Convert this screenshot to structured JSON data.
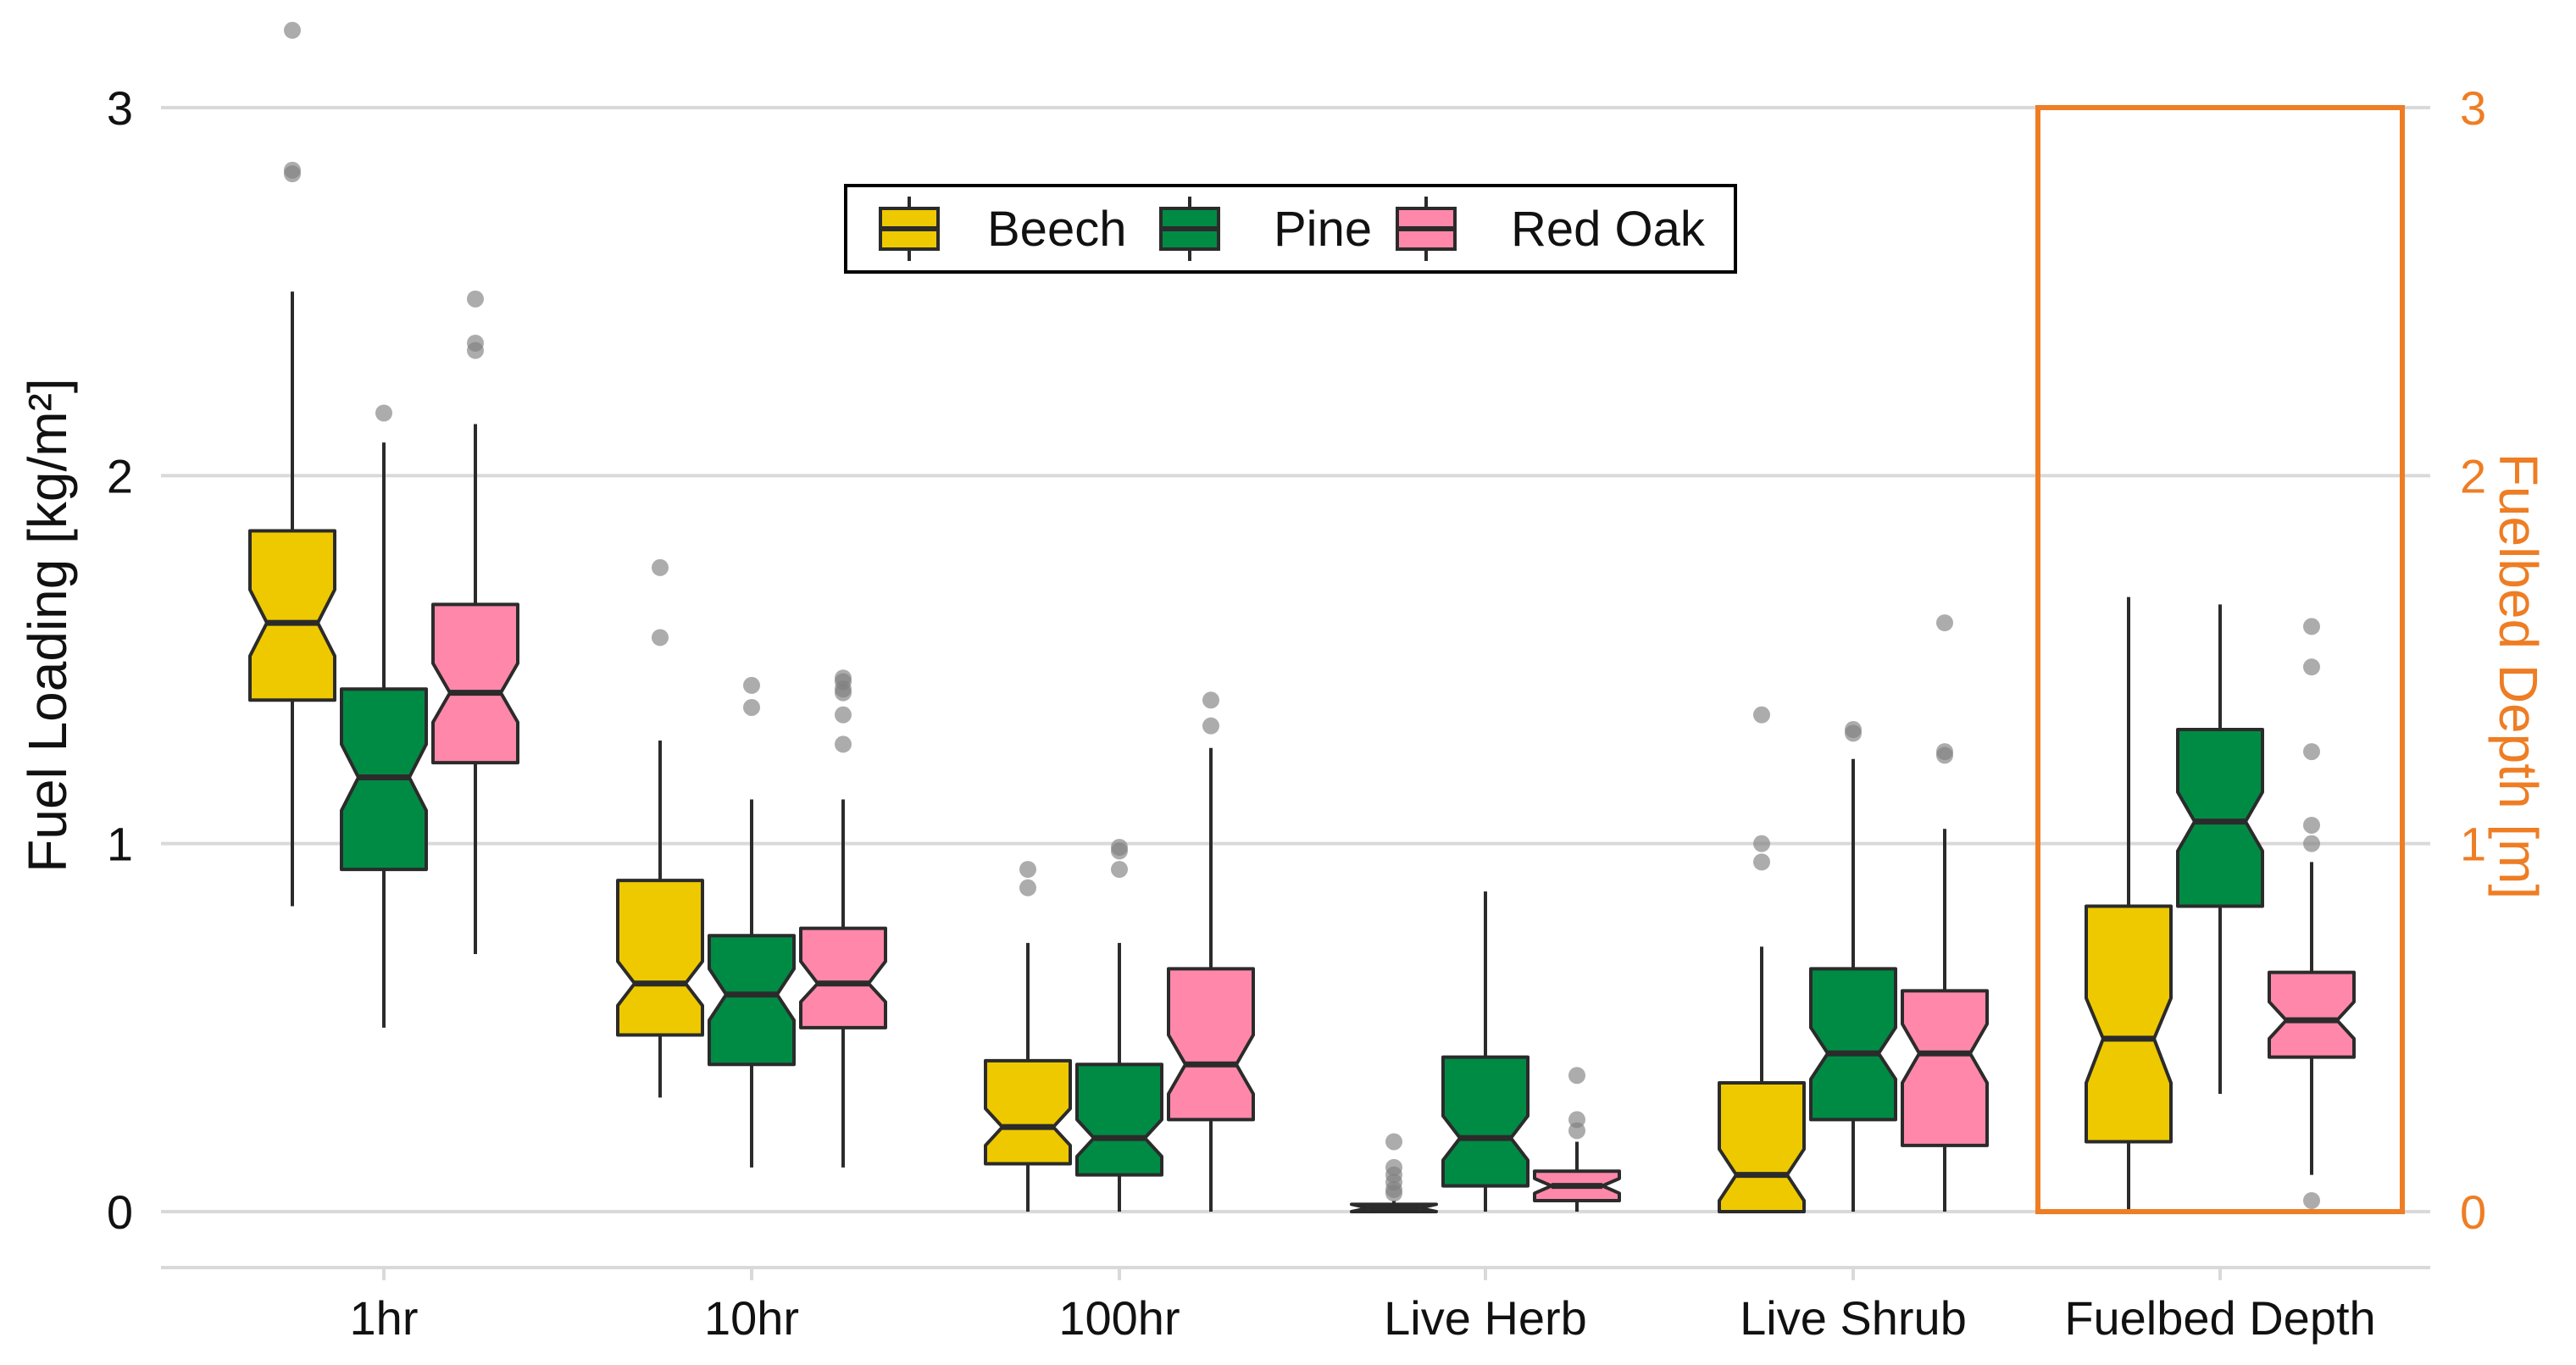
{
  "chart_data": {
    "type": "boxplot",
    "title": "",
    "xlabel": "",
    "ylabel": "Fuel Loading [kg/m²]",
    "ylabel_right": "Fuelbed Depth [m]",
    "ylim": [
      0,
      3
    ],
    "y_ticks": [
      "0",
      "1",
      "2",
      "3"
    ],
    "y_ticks_right": [
      "0",
      "1",
      "2",
      "3"
    ],
    "categories": [
      "1hr",
      "10hr",
      "100hr",
      "Live Herb",
      "Live Shrub",
      "Fuelbed Depth"
    ],
    "highlighted_category": "Fuelbed Depth",
    "legend_position": "top-center",
    "grid": true,
    "series": [
      {
        "name": "Beech",
        "color": "#EEC900",
        "boxes": [
          {
            "whisker_low": 0.83,
            "q1": 1.39,
            "median": 1.6,
            "q3": 1.85,
            "whisker_high": 2.5,
            "notch": [
              1.51,
              1.69
            ],
            "outliers": [
              2.82,
              2.83,
              3.21
            ]
          },
          {
            "whisker_low": 0.31,
            "q1": 0.48,
            "median": 0.62,
            "q3": 0.9,
            "whisker_high": 1.28,
            "notch": [
              0.56,
              0.68
            ],
            "outliers": [
              1.56,
              1.75
            ]
          },
          {
            "whisker_low": 0.0,
            "q1": 0.13,
            "median": 0.23,
            "q3": 0.41,
            "whisker_high": 0.73,
            "notch": [
              0.18,
              0.28
            ],
            "outliers": [
              0.88,
              0.93
            ]
          },
          {
            "whisker_low": 0.0,
            "q1": 0.0,
            "median": 0.01,
            "q3": 0.02,
            "whisker_high": 0.03,
            "notch": [
              0.0,
              0.02
            ],
            "outliers": [
              0.05,
              0.06,
              0.08,
              0.1,
              0.12,
              0.19
            ]
          },
          {
            "whisker_low": 0.0,
            "q1": 0.0,
            "median": 0.1,
            "q3": 0.35,
            "whisker_high": 0.72,
            "notch": [
              0.03,
              0.17
            ],
            "outliers": [
              0.95,
              1.0,
              1.35
            ]
          },
          {
            "whisker_low": 0.0,
            "q1": 0.19,
            "median": 0.47,
            "q3": 0.83,
            "whisker_high": 1.67,
            "notch": [
              0.35,
              0.58
            ],
            "outliers": []
          }
        ]
      },
      {
        "name": "Pine",
        "color": "#008B45",
        "boxes": [
          {
            "whisker_low": 0.5,
            "q1": 0.93,
            "median": 1.18,
            "q3": 1.42,
            "whisker_high": 2.09,
            "notch": [
              1.09,
              1.27
            ],
            "outliers": [
              2.17
            ]
          },
          {
            "whisker_low": 0.12,
            "q1": 0.4,
            "median": 0.59,
            "q3": 0.75,
            "whisker_high": 1.12,
            "notch": [
              0.52,
              0.66
            ],
            "outliers": [
              1.37,
              1.43
            ]
          },
          {
            "whisker_low": 0.0,
            "q1": 0.1,
            "median": 0.2,
            "q3": 0.4,
            "whisker_high": 0.73,
            "notch": [
              0.15,
              0.25
            ],
            "outliers": [
              0.93,
              0.98,
              0.99
            ]
          },
          {
            "whisker_low": 0.0,
            "q1": 0.07,
            "median": 0.2,
            "q3": 0.42,
            "whisker_high": 0.87,
            "notch": [
              0.14,
              0.26
            ],
            "outliers": []
          },
          {
            "whisker_low": 0.0,
            "q1": 0.25,
            "median": 0.43,
            "q3": 0.66,
            "whisker_high": 1.23,
            "notch": [
              0.36,
              0.5
            ],
            "outliers": [
              1.3,
              1.31
            ]
          },
          {
            "whisker_low": 0.32,
            "q1": 0.83,
            "median": 1.06,
            "q3": 1.31,
            "whisker_high": 1.65,
            "notch": [
              0.98,
              1.14
            ],
            "outliers": []
          }
        ]
      },
      {
        "name": "Red Oak",
        "color": "#FF88AA",
        "boxes": [
          {
            "whisker_low": 0.7,
            "q1": 1.22,
            "median": 1.41,
            "q3": 1.65,
            "whisker_high": 2.14,
            "notch": [
              1.33,
              1.49
            ],
            "outliers": [
              2.34,
              2.36,
              2.48
            ]
          },
          {
            "whisker_low": 0.12,
            "q1": 0.5,
            "median": 0.62,
            "q3": 0.77,
            "whisker_high": 1.12,
            "notch": [
              0.57,
              0.68
            ],
            "outliers": [
              1.27,
              1.35,
              1.41,
              1.42,
              1.44,
              1.45
            ]
          },
          {
            "whisker_low": 0.0,
            "q1": 0.25,
            "median": 0.4,
            "q3": 0.66,
            "whisker_high": 1.26,
            "notch": [
              0.32,
              0.48
            ],
            "outliers": [
              1.32,
              1.39
            ]
          },
          {
            "whisker_low": 0.0,
            "q1": 0.03,
            "median": 0.07,
            "q3": 0.11,
            "whisker_high": 0.19,
            "notch": [
              0.05,
              0.09
            ],
            "outliers": [
              0.22,
              0.25,
              0.37
            ]
          },
          {
            "whisker_low": 0.0,
            "q1": 0.18,
            "median": 0.43,
            "q3": 0.6,
            "whisker_high": 1.04,
            "notch": [
              0.35,
              0.51
            ],
            "outliers": [
              1.24,
              1.25,
              1.6
            ]
          },
          {
            "whisker_low": 0.1,
            "q1": 0.42,
            "median": 0.52,
            "q3": 0.65,
            "whisker_high": 0.95,
            "notch": [
              0.47,
              0.57
            ],
            "outliers": [
              0.03,
              1.0,
              1.05,
              1.25,
              1.48,
              1.59
            ]
          }
        ]
      }
    ]
  },
  "colors": {
    "highlight": "#EE7D24",
    "grid": "#D9D9D9",
    "box_stroke": "#2B2B2B",
    "outlier": "#7F7F7F"
  }
}
